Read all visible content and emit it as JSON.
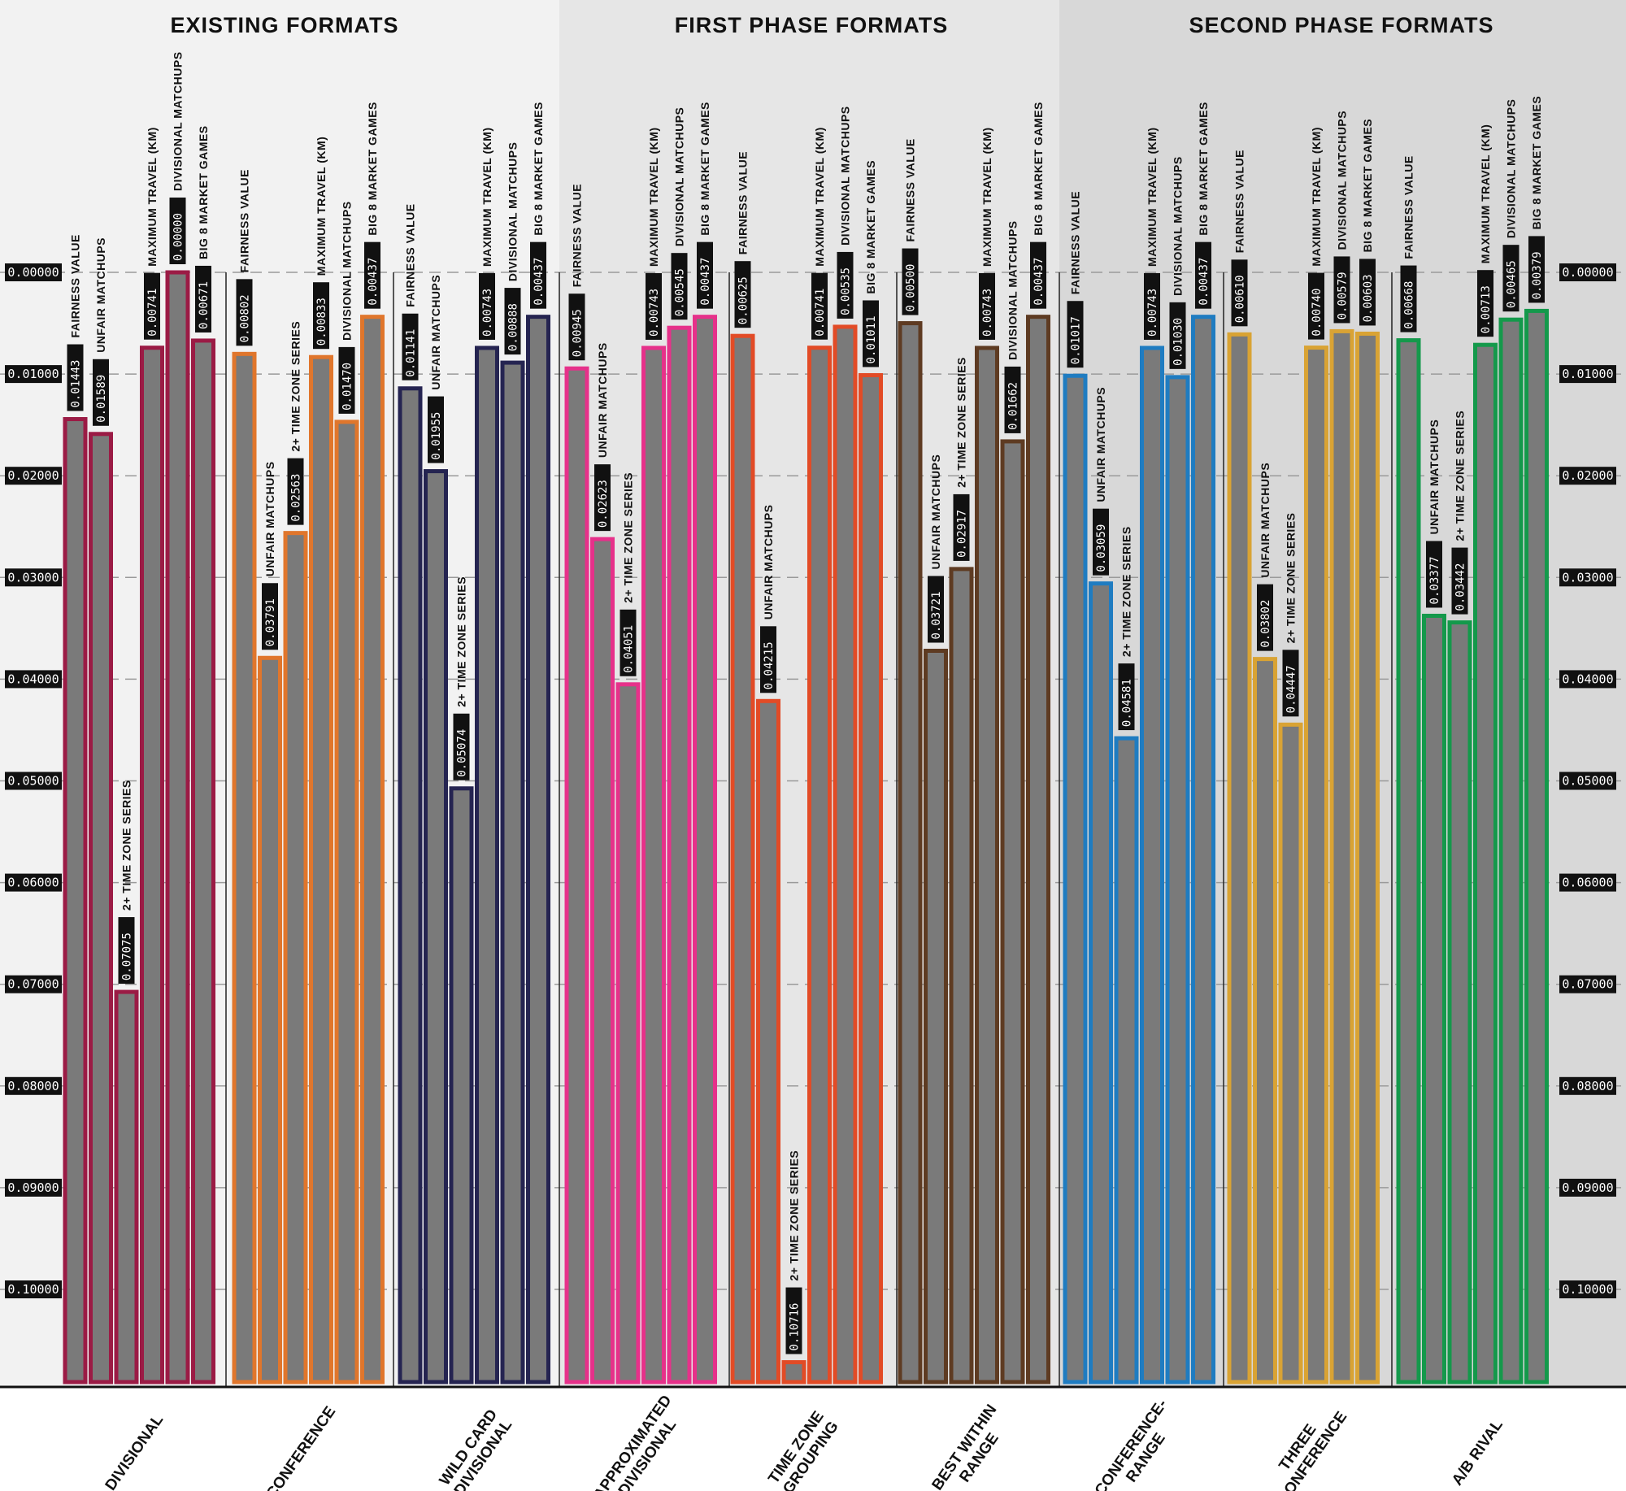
{
  "chart_data": {
    "type": "bar",
    "sections": [
      {
        "title": "EXISTING FORMATS",
        "formats": [
          "DIVISIONAL",
          "CONFERENCE",
          "WILD CARD DIVISIONAL"
        ]
      },
      {
        "title": "FIRST PHASE FORMATS",
        "formats": [
          "APPROXIMATED DIVISIONAL",
          "TIME ZONE GROUPING",
          "BEST WITHIN RANGE"
        ]
      },
      {
        "title": "SECOND PHASE FORMATS",
        "formats": [
          "CONFERENCE-RANGE",
          "THREE CONFERENCE",
          "A/B RIVAL"
        ]
      }
    ],
    "metrics": [
      "FAIRNESS VALUE",
      "UNFAIR MATCHUPS",
      "2+ TIME ZONE SERIES",
      "MAXIMUM TRAVEL (KM)",
      "DIVISIONAL MATCHUPS",
      "BIG 8 MARKET GAMES"
    ],
    "y_ticks": [
      "0.00000",
      "0.01000",
      "0.02000",
      "0.03000",
      "0.04000",
      "0.05000",
      "0.06000",
      "0.07000",
      "0.08000",
      "0.09000",
      "0.10000"
    ],
    "ylim": [
      0,
      0.11
    ],
    "y_inverted": true,
    "grid": true,
    "series": [
      {
        "format": "DIVISIONAL",
        "color": "#9b1b45",
        "values": [
          0.01443,
          0.01589,
          0.07075,
          0.00741,
          0.0,
          0.00671
        ],
        "labels": [
          "0.01443",
          "0.01589",
          "0.07075",
          "0.00741",
          "0.00000",
          "0.00671"
        ]
      },
      {
        "format": "CONFERENCE",
        "color": "#e0762c",
        "values": [
          0.00802,
          0.03791,
          0.02563,
          0.00833,
          0.0147,
          0.00437
        ],
        "labels": [
          "0.00802",
          "0.03791",
          "0.02563",
          "0.00833",
          "0.01470",
          "0.00437"
        ]
      },
      {
        "format": "WILD CARD DIVISIONAL",
        "color": "#252451",
        "values": [
          0.01141,
          0.01955,
          0.05074,
          0.00743,
          0.00888,
          0.00437
        ],
        "labels": [
          "0.01141",
          "0.01955",
          "0.05074",
          "0.00743",
          "0.00888",
          "0.00437"
        ]
      },
      {
        "format": "APPROXIMATED DIVISIONAL",
        "color": "#e6318a",
        "values": [
          0.00945,
          0.02623,
          0.04051,
          0.00743,
          0.00545,
          0.00437
        ],
        "labels": [
          "0.00945",
          "0.02623",
          "0.04051",
          "0.00743",
          "0.00545",
          "0.00437"
        ]
      },
      {
        "format": "TIME ZONE GROUPING",
        "color": "#e24b26",
        "values": [
          0.00625,
          0.04215,
          0.10716,
          0.00741,
          0.00535,
          0.01011
        ],
        "labels": [
          "0.00625",
          "0.04215",
          "0.10716",
          "0.00741",
          "0.00535",
          "0.01011"
        ]
      },
      {
        "format": "BEST WITHIN RANGE",
        "color": "#5e3b22",
        "values": [
          0.005,
          0.03721,
          0.02917,
          0.00743,
          0.01662,
          0.00437
        ],
        "labels": [
          "0.00500",
          "0.03721",
          "0.02917",
          "0.00743",
          "0.01662",
          "0.00437"
        ]
      },
      {
        "format": "CONFERENCE-RANGE",
        "color": "#1f7cc1",
        "values": [
          0.01017,
          0.03059,
          0.04581,
          0.00743,
          0.0103,
          0.00437
        ],
        "labels": [
          "0.01017",
          "0.03059",
          "0.04581",
          "0.00743",
          "0.01030",
          "0.00437"
        ]
      },
      {
        "format": "THREE CONFERENCE",
        "color": "#d9a334",
        "values": [
          0.0061,
          0.03802,
          0.04447,
          0.0074,
          0.00579,
          0.00603
        ],
        "labels": [
          "0.00610",
          "0.03802",
          "0.04447",
          "0.00740",
          "0.00579",
          "0.00603"
        ]
      },
      {
        "format": "A/B RIVAL",
        "color": "#14994b",
        "values": [
          0.00668,
          0.03377,
          0.03442,
          0.00713,
          0.00465,
          0.00379
        ],
        "labels": [
          "0.00668",
          "0.03377",
          "0.03442",
          "0.00713",
          "0.00465",
          "0.00379"
        ]
      }
    ],
    "format_labels": [
      [
        "DIVISIONAL"
      ],
      [
        "CONFERENCE"
      ],
      [
        "WILD CARD",
        "DIVISIONAL"
      ],
      [
        "APPROXIMATED",
        "DIVISIONAL"
      ],
      [
        "TIME ZONE",
        "GROUPING"
      ],
      [
        "BEST WITHIN",
        "RANGE"
      ],
      [
        "CONFERENCE-",
        "RANGE"
      ],
      [
        "THREE",
        "CONFERENCE"
      ],
      [
        "A/B RIVAL"
      ]
    ],
    "colors": {
      "bar_fill": "#7a7a7a",
      "section_1_bg": "#f2f2f2",
      "section_2_bg": "#e6e6e6",
      "section_3_bg": "#d8d8d8"
    }
  }
}
